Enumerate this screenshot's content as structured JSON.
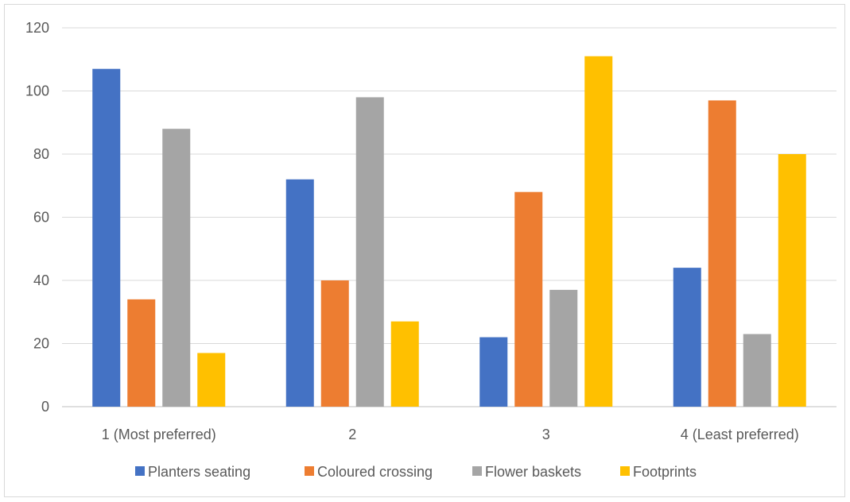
{
  "chart_data": {
    "type": "bar",
    "categories": [
      "1 (Most preferred)",
      "2",
      "3",
      "4 (Least preferred)"
    ],
    "series": [
      {
        "name": "Planters seating",
        "color": "#4472C4",
        "values": [
          107,
          72,
          22,
          44
        ]
      },
      {
        "name": "Coloured crossing",
        "color": "#ED7D31",
        "values": [
          34,
          40,
          68,
          97
        ]
      },
      {
        "name": "Flower baskets",
        "color": "#A5A5A5",
        "values": [
          88,
          98,
          37,
          23
        ]
      },
      {
        "name": "Footprints",
        "color": "#FFC000",
        "values": [
          17,
          27,
          111,
          80
        ]
      }
    ],
    "ylim": [
      0,
      120
    ],
    "yticks": [
      "0",
      "20",
      "40",
      "60",
      "80",
      "100",
      "120"
    ],
    "grid": true,
    "legend": "bottom"
  }
}
